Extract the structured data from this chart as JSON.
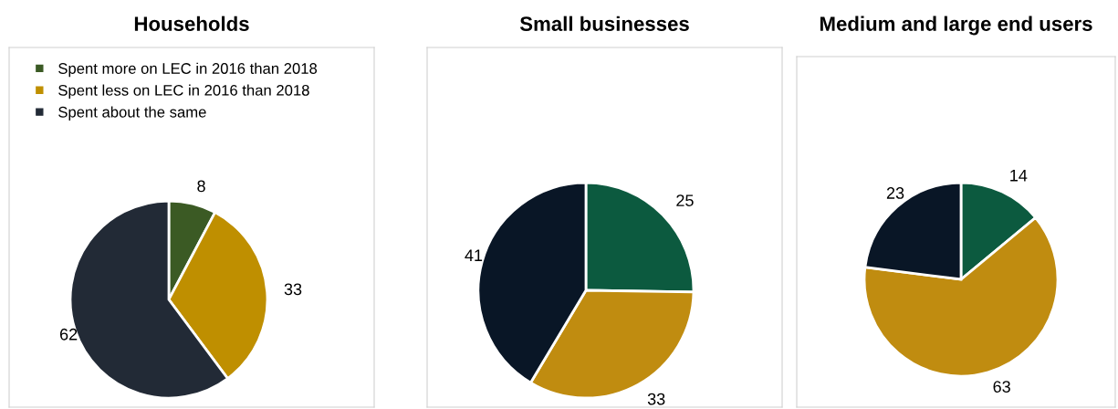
{
  "chart_data": [
    {
      "type": "pie",
      "title": "Households",
      "categories": [
        "Spent more on LEC in 2016 than 2018",
        "Spent less on LEC in 2016 than 2018",
        "Spent about the same"
      ],
      "values": [
        8,
        33,
        62
      ],
      "colors": [
        "#3b5a24",
        "#bf8f00",
        "#222a36"
      ],
      "data_labels": true,
      "legend": "top left"
    },
    {
      "type": "pie",
      "title": "Small businesses",
      "categories": [
        null,
        null,
        null
      ],
      "values": [
        25,
        33,
        41
      ],
      "colors": [
        "#0c5a3f",
        "#c08c10",
        "#091626"
      ],
      "data_labels": true
    },
    {
      "type": "pie",
      "title": "Medium and large end users",
      "categories": [
        null,
        null,
        null
      ],
      "values": [
        14,
        63,
        23
      ],
      "colors": [
        "#0c5a3f",
        "#c08c10",
        "#091626"
      ],
      "data_labels": true
    }
  ]
}
